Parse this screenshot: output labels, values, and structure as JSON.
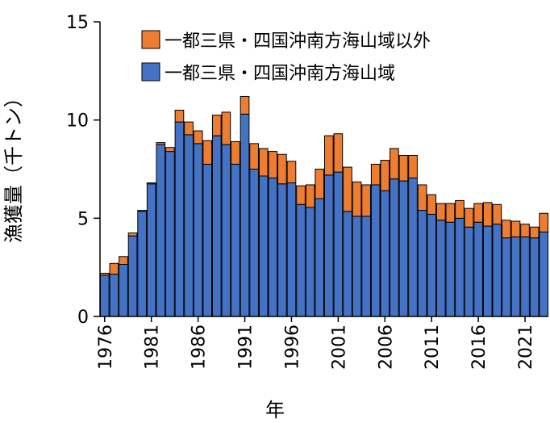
{
  "chart_data": {
    "type": "bar",
    "stacked": true,
    "xlabel": "年",
    "ylabel": "漁獲量（千トン）",
    "ylim": [
      0,
      15
    ],
    "yticks": [
      0,
      5,
      10,
      15
    ],
    "xtick_labels": [
      "1976",
      "1981",
      "1986",
      "1991",
      "1996",
      "2001",
      "2006",
      "2011",
      "2016",
      "2021"
    ],
    "legend_position": "top",
    "categories": [
      1976,
      1977,
      1978,
      1979,
      1980,
      1981,
      1982,
      1983,
      1984,
      1985,
      1986,
      1987,
      1988,
      1989,
      1990,
      1991,
      1992,
      1993,
      1994,
      1995,
      1996,
      1997,
      1998,
      1999,
      2000,
      2001,
      2002,
      2003,
      2004,
      2005,
      2006,
      2007,
      2008,
      2009,
      2010,
      2011,
      2012,
      2013,
      2014,
      2015,
      2016,
      2017,
      2018,
      2019,
      2020,
      2021,
      2022,
      2023
    ],
    "series": [
      {
        "name": "一都三県・四国沖南方海山域",
        "color": "#4472C4",
        "values": [
          2.1,
          2.15,
          2.65,
          4.1,
          5.35,
          6.75,
          8.75,
          8.4,
          9.9,
          9.25,
          8.8,
          7.75,
          9.2,
          8.75,
          7.75,
          10.3,
          7.5,
          7.15,
          7.05,
          6.75,
          6.8,
          5.7,
          5.55,
          6.0,
          7.2,
          7.35,
          5.35,
          5.1,
          5.1,
          6.7,
          6.4,
          7.0,
          6.9,
          7.05,
          5.4,
          5.2,
          4.9,
          4.8,
          5.0,
          4.55,
          4.8,
          4.6,
          4.7,
          4.0,
          4.05,
          4.05,
          4.0,
          4.3
        ]
      },
      {
        "name": "一都三県・四国沖南方海山域以外",
        "color": "#ED7D31",
        "values": [
          0.1,
          0.55,
          0.4,
          0.15,
          0.05,
          0.05,
          0.1,
          0.2,
          0.6,
          0.65,
          0.65,
          1.2,
          1.05,
          1.65,
          1.15,
          0.9,
          1.3,
          1.4,
          1.35,
          1.5,
          1.1,
          0.95,
          1.15,
          1.5,
          2.0,
          1.95,
          2.25,
          1.75,
          1.6,
          1.05,
          1.55,
          1.55,
          1.3,
          1.15,
          1.3,
          1.0,
          0.85,
          0.95,
          0.9,
          0.95,
          0.95,
          1.2,
          1.0,
          0.9,
          0.8,
          0.65,
          0.55,
          0.95
        ]
      }
    ]
  }
}
